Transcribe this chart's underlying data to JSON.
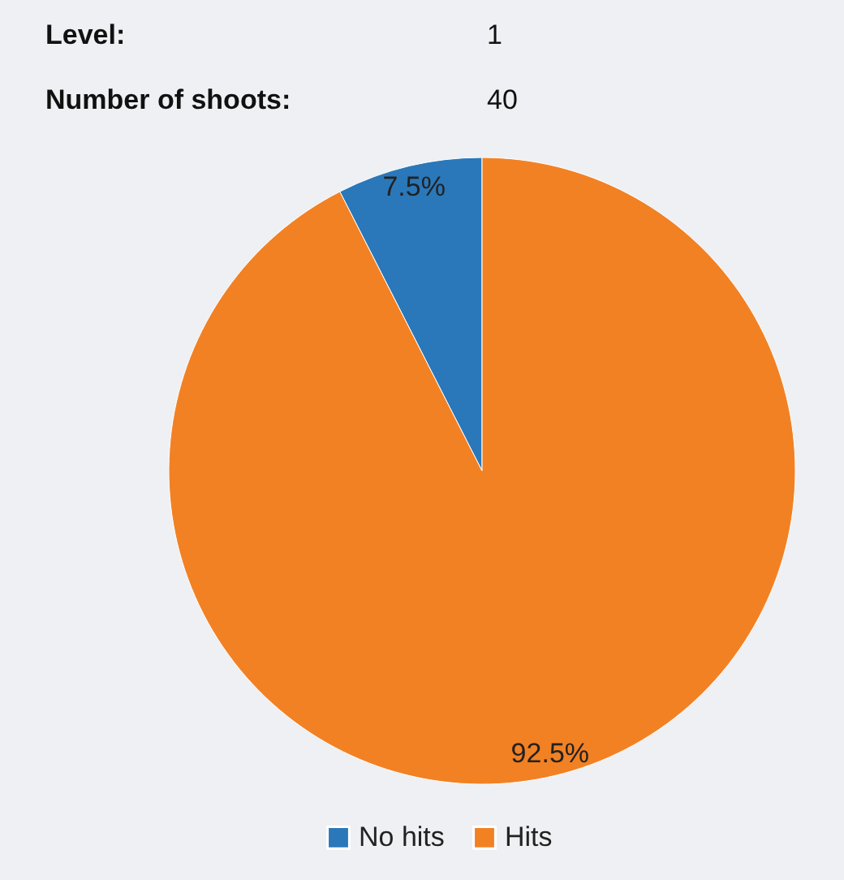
{
  "chart_data": {
    "type": "pie",
    "categories": [
      "No hits",
      "Hits"
    ],
    "values": [
      7.5,
      92.5
    ],
    "colors": [
      "#2a78b9",
      "#f28124"
    ],
    "value_labels": [
      "7.5%",
      "92.5%"
    ],
    "legend": "bottom",
    "annotations": [
      "Level:",
      "1",
      "Number of shoots:",
      "40"
    ]
  }
}
